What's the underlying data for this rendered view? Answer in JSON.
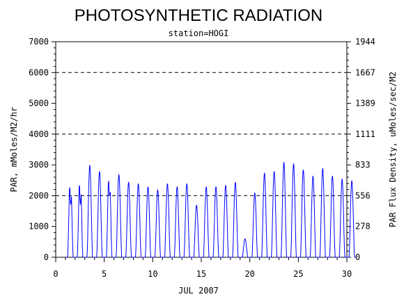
{
  "chart_data": {
    "type": "line",
    "title": "PHOTOSYNTHETIC RADIATION",
    "subtitle": "station=HOGI",
    "xlabel": "JUL 2007",
    "ylabel_left": "PAR, mMoles/M2/hr",
    "ylabel_right": "PAR Flux Density, uMoles/sec/M2",
    "xlim": [
      0,
      30
    ],
    "ylim": [
      0,
      7000
    ],
    "x_ticks": [
      "0",
      "5",
      "10",
      "15",
      "20",
      "25",
      "30"
    ],
    "y_ticks_left": [
      "0",
      "1000",
      "2000",
      "3000",
      "4000",
      "5000",
      "6000",
      "7000"
    ],
    "y_ticks_right": [
      "0",
      "278",
      "556",
      "833",
      "1111",
      "1389",
      "1667",
      "1944"
    ],
    "gridlines_y": [
      2000,
      4000,
      6000
    ],
    "line_color": "#0000ff",
    "series": [
      {
        "daily_peaks": [
          {
            "day": 1,
            "peak": 2750,
            "secondary": 1750
          },
          {
            "day": 2,
            "peak": 2850,
            "secondary": 1750
          },
          {
            "day": 3,
            "peak": 3000
          },
          {
            "day": 4,
            "peak": 2800
          },
          {
            "day": 5,
            "peak": 2950,
            "secondary": 2050
          },
          {
            "day": 6,
            "peak": 2700
          },
          {
            "day": 7,
            "peak": 2450
          },
          {
            "day": 8,
            "peak": 2400
          },
          {
            "day": 9,
            "peak": 2300
          },
          {
            "day": 10,
            "peak": 2200
          },
          {
            "day": 11,
            "peak": 2400
          },
          {
            "day": 12,
            "peak": 2300
          },
          {
            "day": 13,
            "peak": 2400
          },
          {
            "day": 14,
            "peak": 1700
          },
          {
            "day": 15,
            "peak": 2300
          },
          {
            "day": 16,
            "peak": 2300
          },
          {
            "day": 17,
            "peak": 2350
          },
          {
            "day": 18,
            "peak": 2450
          },
          {
            "day": 19,
            "peak": 600
          },
          {
            "day": 20,
            "peak": 2100
          },
          {
            "day": 21,
            "peak": 2750
          },
          {
            "day": 22,
            "peak": 2800
          },
          {
            "day": 23,
            "peak": 3100
          },
          {
            "day": 24,
            "peak": 3050
          },
          {
            "day": 25,
            "peak": 2850
          },
          {
            "day": 26,
            "peak": 2650
          },
          {
            "day": 27,
            "peak": 2900
          },
          {
            "day": 28,
            "peak": 2650
          },
          {
            "day": 29,
            "peak": 2550
          },
          {
            "day": 30,
            "peak": 2500
          }
        ]
      }
    ]
  }
}
